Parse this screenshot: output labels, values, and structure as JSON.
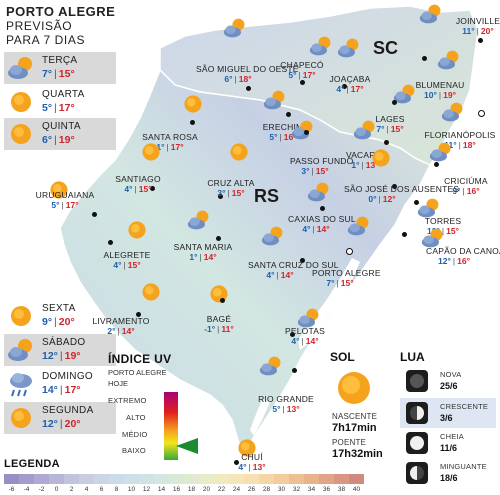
{
  "header": {
    "line1": "PORTO ALEGRE",
    "line2": "PREVISÃO",
    "line3": "PARA 7 DIAS"
  },
  "forecast": [
    {
      "day": "TERÇA",
      "min": "7°",
      "max": "15°",
      "icon": "cloud-sun-icon",
      "shaded": true
    },
    {
      "day": "QUARTA",
      "min": "5°",
      "max": "17°",
      "icon": "sun-icon",
      "shaded": false
    },
    {
      "day": "QUINTA",
      "min": "6°",
      "max": "19°",
      "icon": "sun-icon",
      "shaded": true
    },
    {
      "day": "SEXTA",
      "min": "9°",
      "max": "20°",
      "icon": "sun-icon",
      "shaded": false
    },
    {
      "day": "SÁBADO",
      "min": "12°",
      "max": "19°",
      "icon": "cloud-sun-icon",
      "shaded": true
    },
    {
      "day": "DOMINGO",
      "min": "14°",
      "max": "17°",
      "icon": "rain-cloud-icon",
      "shaded": false
    },
    {
      "day": "SEGUNDA",
      "min": "12°",
      "max": "20°",
      "icon": "sun-icon",
      "shaded": true
    }
  ],
  "states": {
    "sc": "SC",
    "rs": "RS"
  },
  "cities": [
    {
      "name": "JOINVILLE",
      "min": "11°",
      "max": "20°",
      "icon": "cloud-sun-icon"
    },
    {
      "name": "CHAPECÓ",
      "min": "5°",
      "max": "17°",
      "icon": "cloud-sun-icon"
    },
    {
      "name": "SÃO MIGUEL DO OESTE",
      "min": "6°",
      "max": "18°",
      "icon": "cloud-sun-icon"
    },
    {
      "name": "JOAÇABA",
      "min": "4°",
      "max": "17°",
      "icon": "cloud-sun-icon"
    },
    {
      "name": "BLUMENAU",
      "min": "10°",
      "max": "19°",
      "icon": "cloud-sun-icon"
    },
    {
      "name": "LAGES",
      "min": "7°",
      "max": "15°",
      "icon": "cloud-sun-icon"
    },
    {
      "name": "FLORIANÓPOLIS",
      "min": "11°",
      "max": "18°",
      "icon": "cloud-sun-icon"
    },
    {
      "name": "ERECHIM",
      "min": "5°",
      "max": "16°",
      "icon": "cloud-sun-icon"
    },
    {
      "name": "SANTA ROSA",
      "min": "1°",
      "max": "17°",
      "icon": "sun-icon"
    },
    {
      "name": "PASSO FUNDO",
      "min": "3°",
      "max": "15°",
      "icon": "cloud-sun-icon"
    },
    {
      "name": "VACARIA",
      "min": "1°",
      "max": "13°",
      "icon": "cloud-sun-icon"
    },
    {
      "name": "CRICIÚMA",
      "min": "9°",
      "max": "16°",
      "icon": "cloud-sun-icon"
    },
    {
      "name": "SANTIAGO",
      "min": "4°",
      "max": "15°",
      "icon": "sun-icon"
    },
    {
      "name": "CRUZ ALTA",
      "min": "3°",
      "max": "15°",
      "icon": "sun-icon"
    },
    {
      "name": "SÃO JOSÉ DOS AUSENTES",
      "min": "0°",
      "max": "12°",
      "icon": "sun-icon"
    },
    {
      "name": "URUGUAIANA",
      "min": "5°",
      "max": "17°",
      "icon": "sun-icon"
    },
    {
      "name": "CAXIAS DO SUL",
      "min": "4°",
      "max": "14°",
      "icon": "cloud-sun-icon"
    },
    {
      "name": "TORRES",
      "min": "12°",
      "max": "15°",
      "icon": "cloud-sun-icon"
    },
    {
      "name": "ALEGRETE",
      "min": "4°",
      "max": "15°",
      "icon": "sun-icon"
    },
    {
      "name": "SANTA MARIA",
      "min": "1°",
      "max": "14°",
      "icon": "cloud-sun-icon"
    },
    {
      "name": "SANTA CRUZ DO SUL",
      "min": "4°",
      "max": "14°",
      "icon": "cloud-sun-icon"
    },
    {
      "name": "CAPÃO DA CANOA",
      "min": "12°",
      "max": "16°",
      "icon": "cloud-sun-icon"
    },
    {
      "name": "PORTO ALEGRE",
      "min": "7°",
      "max": "15°",
      "icon": "cloud-sun-icon"
    },
    {
      "name": "LIVRAMENTO",
      "min": "2°",
      "max": "14°",
      "icon": "sun-icon"
    },
    {
      "name": "BAGÉ",
      "min": "-1°",
      "max": "11°",
      "icon": "sun-icon"
    },
    {
      "name": "PELOTAS",
      "min": "4°",
      "max": "14°",
      "icon": "cloud-sun-icon"
    },
    {
      "name": "RIO GRANDE",
      "min": "5°",
      "max": "13°",
      "icon": "cloud-sun-icon"
    },
    {
      "name": "CHUÍ",
      "min": "4°",
      "max": "13°",
      "icon": "sun-icon"
    }
  ],
  "uv": {
    "title": "ÍNDICE UV",
    "subtitle1": "PORTO ALEGRE",
    "subtitle2": "HOJE",
    "levels": [
      "EXTREMO",
      "ALTO",
      "MÉDIO",
      "BAIXO"
    ],
    "current": "BAIXO"
  },
  "sun": {
    "title": "SOL",
    "rise_label": "NASCENTE",
    "rise": "7h17min",
    "set_label": "POENTE",
    "set": "17h32min"
  },
  "moon": {
    "title": "LUA",
    "phases": [
      {
        "name": "NOVA",
        "date": "25/6",
        "icon": "new-moon-icon",
        "shaded": false
      },
      {
        "name": "CRESCENTE",
        "date": "3/6",
        "icon": "first-quarter-moon-icon",
        "shaded": true
      },
      {
        "name": "CHEIA",
        "date": "11/6",
        "icon": "full-moon-icon",
        "shaded": false
      },
      {
        "name": "MINGUANTE",
        "date": "18/6",
        "icon": "last-quarter-moon-icon",
        "shaded": false
      }
    ]
  },
  "legend": {
    "title": "LEGENDA",
    "ticks": [
      "-6",
      "-4",
      "-2",
      "0",
      "2",
      "4",
      "6",
      "8",
      "10",
      "12",
      "14",
      "16",
      "18",
      "20",
      "22",
      "24",
      "26",
      "28",
      "30",
      "32",
      "34",
      "36",
      "38",
      "40"
    ],
    "colors": [
      "#9a8fc4",
      "#a49ccb",
      "#aeaad2",
      "#b8b6d8",
      "#c2c4de",
      "#c8cde2",
      "#cad5e6",
      "#cbdbe8",
      "#cde0e8",
      "#cfe3e5",
      "#d3e7e0",
      "#d9e9d8",
      "#dfead0",
      "#e7ebc7",
      "#efeac0",
      "#f4e6b8",
      "#f6dfb0",
      "#f6d6a6",
      "#f3cb9c",
      "#efbf94",
      "#e9b28c",
      "#e2a486",
      "#da9682",
      "#d2897f"
    ]
  },
  "colors": {
    "min_temp": "#1f5fa8",
    "max_temp": "#d0242b",
    "map_cold": "#b9c3dd",
    "map_mid": "#cfe3e5",
    "map_warm": "#dce9d6"
  }
}
